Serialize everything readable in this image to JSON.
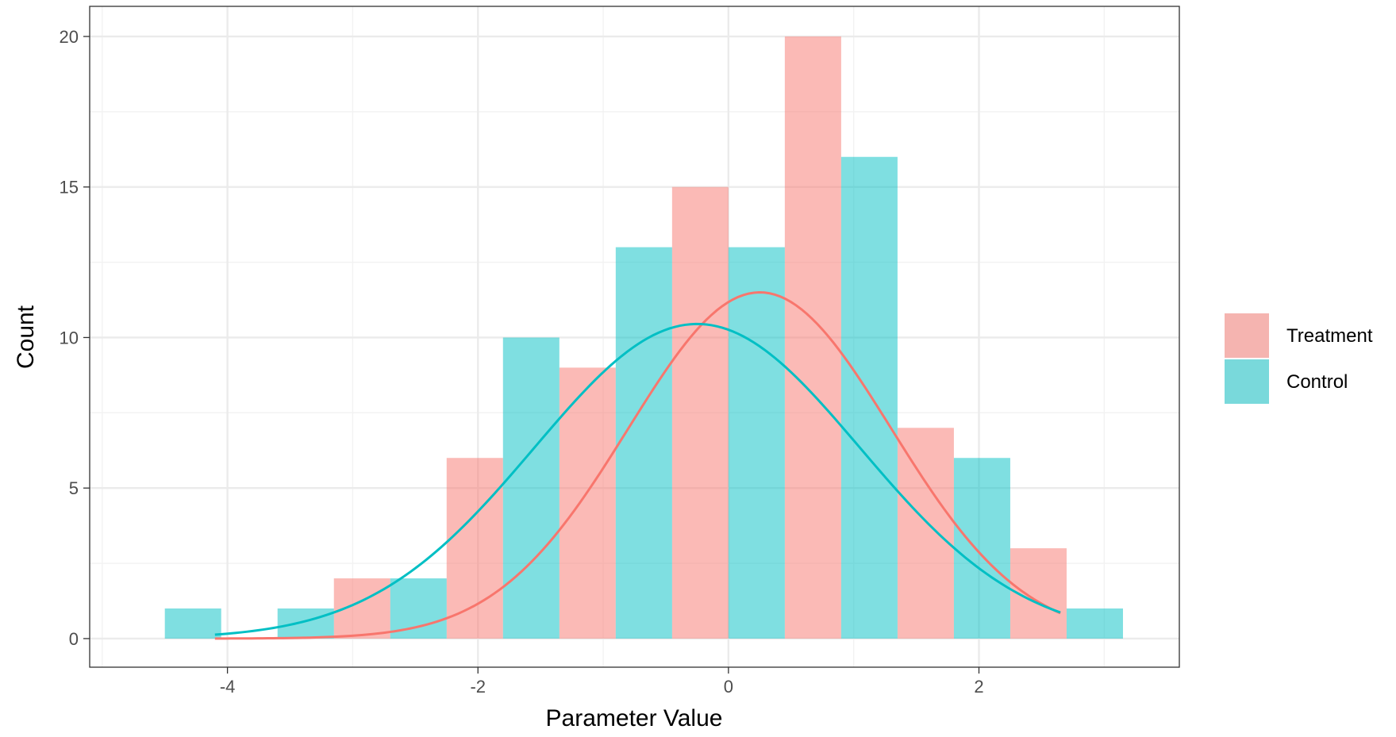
{
  "chart_data": {
    "type": "bar",
    "subtype": "overlaid histogram with fitted normal curves",
    "xlabel": "Parameter Value",
    "ylabel": "Count",
    "xlim": [
      -5.1,
      3.6
    ],
    "ylim": [
      -0.95,
      21
    ],
    "x_ticks": [
      -4,
      -2,
      0,
      2
    ],
    "x_tick_labels": [
      "-4",
      "-2",
      "0",
      "2"
    ],
    "y_ticks": [
      0,
      5,
      10,
      15,
      20
    ],
    "y_tick_labels": [
      "0",
      "5",
      "10",
      "15",
      "20"
    ],
    "grid": true,
    "legend_position": "right",
    "bin_width": 0.45,
    "series": [
      {
        "name": "Treatment",
        "color": "#F8766D",
        "bins": [
          {
            "x0": -3.15,
            "x1": -2.7,
            "count": 2
          },
          {
            "x0": -2.25,
            "x1": -1.8,
            "count": 6
          },
          {
            "x0": -1.35,
            "x1": -0.9,
            "count": 9
          },
          {
            "x0": -0.45,
            "x1": 0.0,
            "count": 15
          },
          {
            "x0": 0.45,
            "x1": 0.9,
            "count": 20
          },
          {
            "x0": 1.35,
            "x1": 1.8,
            "count": 7
          },
          {
            "x0": 2.25,
            "x1": 2.7,
            "count": 3
          }
        ],
        "curve": {
          "mean": 0.25,
          "sd": 1.05,
          "peak": 11.5,
          "x_from": -4.1,
          "x_to": 2.65
        }
      },
      {
        "name": "Control",
        "color": "#00BFC4",
        "bins": [
          {
            "x0": -4.5,
            "x1": -4.05,
            "count": 1
          },
          {
            "x0": -3.6,
            "x1": -3.15,
            "count": 1
          },
          {
            "x0": -2.7,
            "x1": -2.25,
            "count": 2
          },
          {
            "x0": -1.8,
            "x1": -1.35,
            "count": 10
          },
          {
            "x0": -0.9,
            "x1": -0.45,
            "count": 13
          },
          {
            "x0": 0.0,
            "x1": 0.45,
            "count": 13
          },
          {
            "x0": 0.9,
            "x1": 1.35,
            "count": 16
          },
          {
            "x0": 1.8,
            "x1": 2.25,
            "count": 6
          },
          {
            "x0": 2.7,
            "x1": 3.15,
            "count": 1
          }
        ],
        "curve": {
          "mean": -0.25,
          "sd": 1.3,
          "peak": 10.45,
          "x_from": -4.1,
          "x_to": 2.65
        }
      }
    ]
  }
}
